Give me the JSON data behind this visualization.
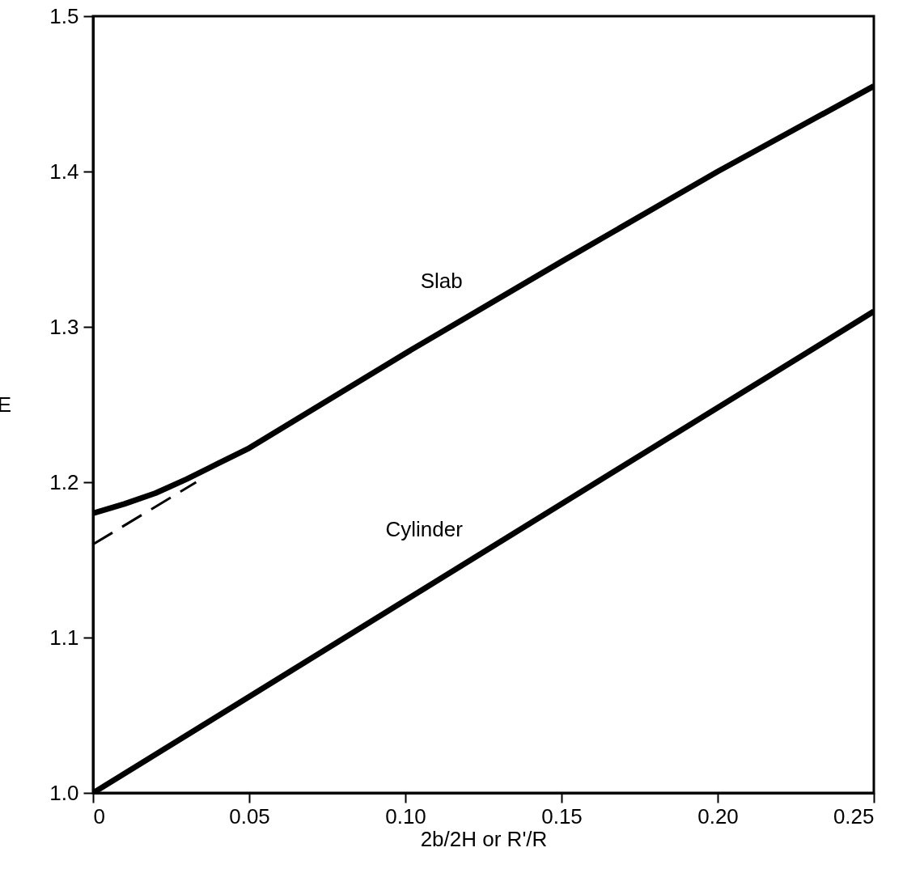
{
  "chart_data": {
    "type": "line",
    "xlabel": "2b/2H  or  R'/R",
    "ylabel": "E",
    "xlim": [
      0,
      0.25
    ],
    "ylim": [
      1.0,
      1.5
    ],
    "xticks": [
      {
        "value": 0,
        "label": "0"
      },
      0.05,
      {
        "value": 0.1,
        "label": "0.10"
      },
      0.15,
      {
        "value": 0.2,
        "label": "0.20"
      },
      0.25
    ],
    "yticks": [
      {
        "value": 1.0,
        "label": "1.0"
      },
      1.1,
      1.2,
      1.3,
      1.4,
      1.5
    ],
    "grid": false,
    "marker": "none",
    "series": [
      {
        "color": "#000000",
        "line_style": "solid",
        "x": [
          0,
          0.01,
          0.02,
          0.03,
          0.04,
          0.05,
          0.1,
          0.15,
          0.2,
          0.25
        ],
        "values": [
          1.18,
          1.186,
          1.193,
          1.202,
          1.212,
          1.222,
          1.283,
          1.342,
          1.4,
          1.455
        ]
      },
      {
        "color": "#000000",
        "line_style": "dashed",
        "x": [
          0,
          0.033
        ],
        "values": [
          1.16,
          1.2
        ]
      },
      {
        "color": "#000000",
        "line_style": "solid",
        "x": [
          0,
          0.25
        ],
        "values": [
          1.0,
          1.31
        ]
      }
    ],
    "annotations": [
      {
        "text": "Slab",
        "x": 0.13,
        "y": 1.32
      },
      {
        "text": "Cylinder",
        "x": 0.13,
        "y": 1.16
      }
    ]
  }
}
